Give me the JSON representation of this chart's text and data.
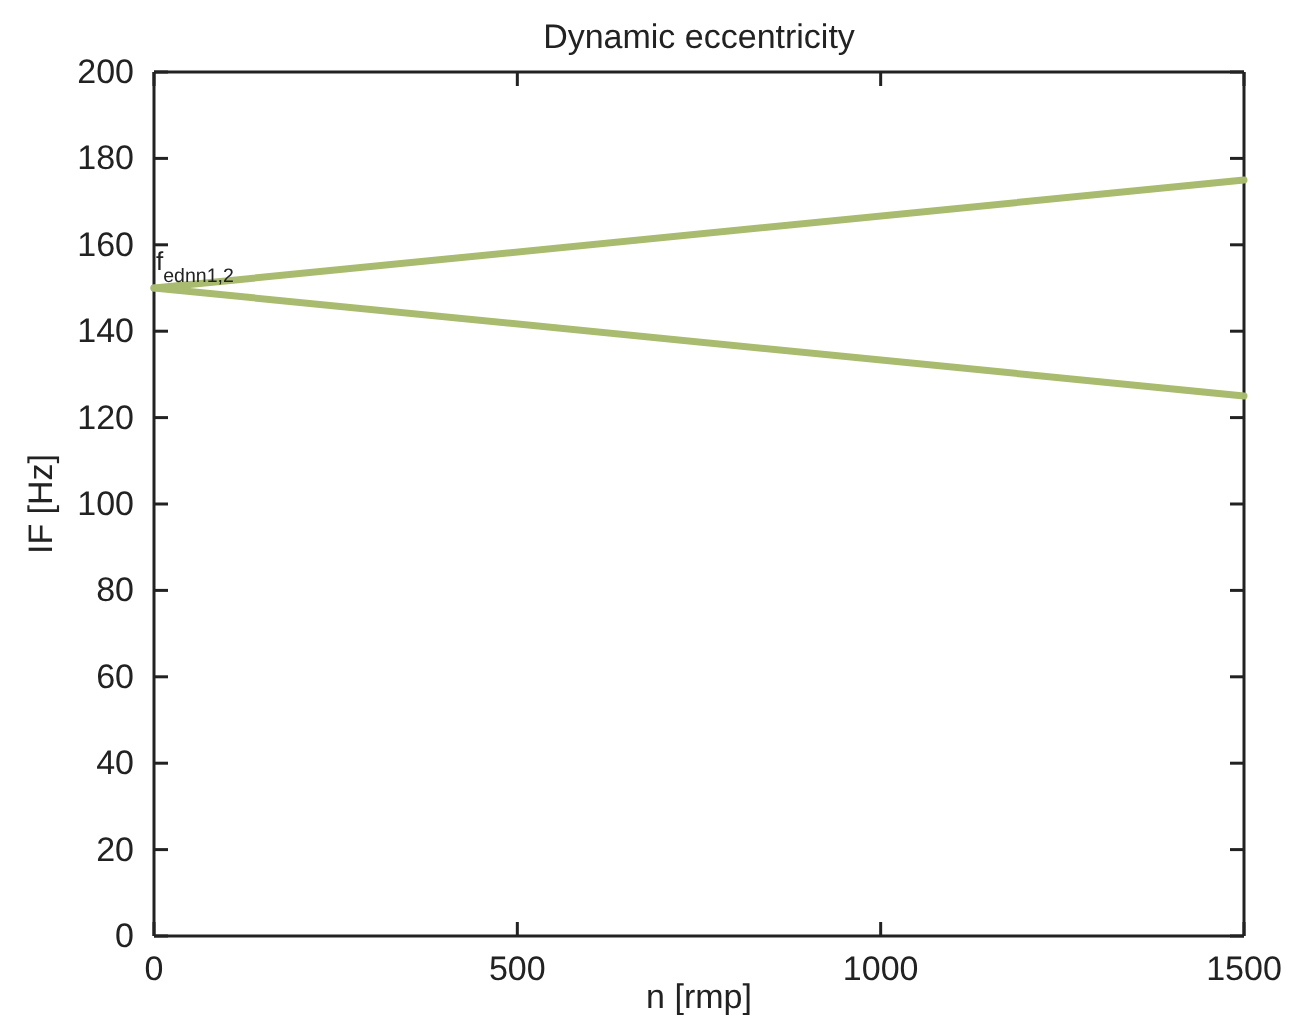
{
  "chart_data": {
    "type": "line",
    "title": "Dynamic eccentricity",
    "xlabel": "n [rmp]",
    "ylabel": "IF [Hz]",
    "x": [
      0,
      1500
    ],
    "series": [
      {
        "color": "#a9bb6e",
        "values": [
          150,
          175
        ]
      },
      {
        "color": "#a9bb6e",
        "values": [
          150,
          125
        ]
      }
    ],
    "xlim": [
      0,
      1500
    ],
    "xticks": [
      0,
      500,
      1000,
      1500
    ],
    "ylim": [
      0,
      200
    ],
    "yticks": [
      0,
      20,
      40,
      60,
      80,
      100,
      120,
      140,
      160,
      180,
      200
    ],
    "annotations": [
      {
        "text": "f$_{ednn1,2}$",
        "x": 0,
        "y": 150
      }
    ],
    "grid": false,
    "marker": "none",
    "line_style": "solid"
  }
}
